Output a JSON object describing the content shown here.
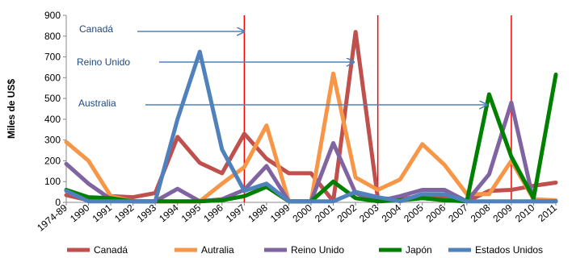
{
  "chart_data": {
    "type": "line",
    "ylabel": "Miles de US$",
    "ylim": [
      0,
      900
    ],
    "yticks": [
      0,
      100,
      200,
      300,
      400,
      500,
      600,
      700,
      800,
      900
    ],
    "categories": [
      "1974-89",
      "1990",
      "1991",
      "1992",
      "1993",
      "1994",
      "1995",
      "1996",
      "1997",
      "1998",
      "1999",
      "2000",
      "2001",
      "2002",
      "2003",
      "2004",
      "2005",
      "2006",
      "2007",
      "2008",
      "2009",
      "2010",
      "2011"
    ],
    "series": [
      {
        "name": "Canadá",
        "color": "#C0504D",
        "values": [
          35,
          10,
          30,
          25,
          45,
          315,
          190,
          140,
          330,
          210,
          140,
          140,
          5,
          820,
          20,
          15,
          30,
          20,
          5,
          55,
          60,
          80,
          95
        ]
      },
      {
        "name": "Autralia",
        "color": "#F79646",
        "values": [
          290,
          200,
          30,
          5,
          5,
          5,
          5,
          90,
          170,
          370,
          5,
          5,
          620,
          120,
          60,
          110,
          280,
          180,
          40,
          40,
          200,
          15,
          10
        ]
      },
      {
        "name": "Reino Unido",
        "color": "#8064A2",
        "values": [
          185,
          90,
          15,
          5,
          5,
          65,
          5,
          15,
          60,
          175,
          5,
          5,
          285,
          45,
          5,
          30,
          60,
          60,
          5,
          135,
          480,
          5,
          5
        ]
      },
      {
        "name": "Japón",
        "color": "#008000",
        "values": [
          60,
          25,
          20,
          5,
          5,
          5,
          5,
          10,
          30,
          75,
          5,
          5,
          100,
          20,
          5,
          10,
          20,
          10,
          5,
          520,
          220,
          20,
          615
        ]
      },
      {
        "name": "Estados Unidos",
        "color": "#4F81BD",
        "values": [
          55,
          5,
          5,
          5,
          5,
          400,
          725,
          255,
          55,
          90,
          5,
          5,
          5,
          50,
          25,
          5,
          40,
          40,
          5,
          5,
          5,
          5,
          5
        ]
      }
    ],
    "reference_lines": {
      "color": "#FF0000",
      "at": [
        "1997",
        "2003",
        "2009"
      ]
    },
    "annotations": [
      {
        "text": "Canadá",
        "arrow_to": "1997"
      },
      {
        "text": "Reino Unido",
        "arrow_to": "2002"
      },
      {
        "text": "Australia",
        "arrow_to": "2008"
      }
    ],
    "annotation_color": "#1F497D",
    "arrow_color": "#4F81BD",
    "grid": false,
    "legend_position": "bottom"
  }
}
